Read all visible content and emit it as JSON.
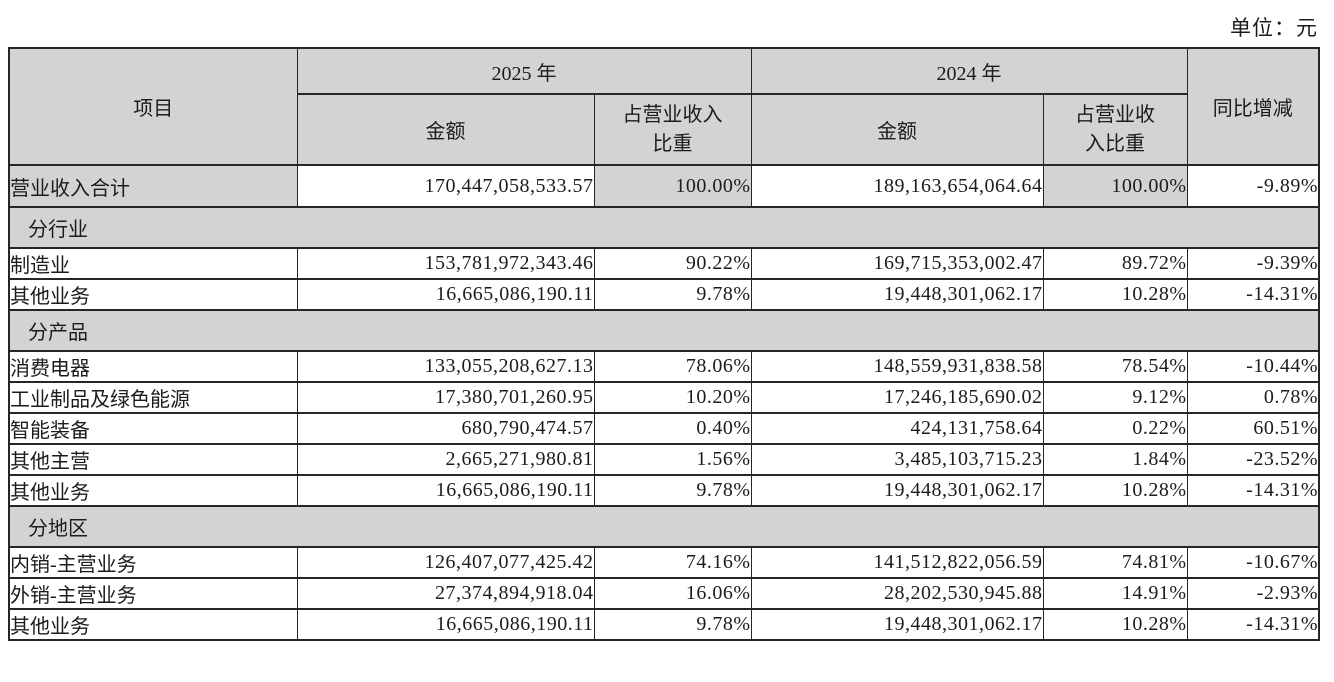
{
  "unit_label": "单位：元",
  "table": {
    "header": {
      "item": "项目",
      "year_2025": "2025 年",
      "year_2024": "2024 年",
      "yoy": "同比增减",
      "amount": "金额",
      "ratio_2025": "占营业收入\n比重",
      "ratio_2024": "占营业收\n入比重"
    },
    "rows": [
      {
        "type": "data",
        "style": "total",
        "label": "营业收入合计",
        "a2025": "170,447,058,533.57",
        "p2025": "100.00%",
        "a2024": "189,163,654,064.64",
        "p2024": "100.00%",
        "yoy": "-9.89%",
        "shaded": [
          "label",
          "p2025",
          "p2024"
        ]
      },
      {
        "type": "section",
        "label": "分行业"
      },
      {
        "type": "data",
        "label": "制造业",
        "a2025": "153,781,972,343.46",
        "p2025": "90.22%",
        "a2024": "169,715,353,002.47",
        "p2024": "89.72%",
        "yoy": "-9.39%"
      },
      {
        "type": "data",
        "label": "其他业务",
        "a2025": "16,665,086,190.11",
        "p2025": "9.78%",
        "a2024": "19,448,301,062.17",
        "p2024": "10.28%",
        "yoy": "-14.31%"
      },
      {
        "type": "section",
        "label": "分产品"
      },
      {
        "type": "data",
        "label": "消费电器",
        "a2025": "133,055,208,627.13",
        "p2025": "78.06%",
        "a2024": "148,559,931,838.58",
        "p2024": "78.54%",
        "yoy": "-10.44%"
      },
      {
        "type": "data",
        "label": "工业制品及绿色能源",
        "a2025": "17,380,701,260.95",
        "p2025": "10.20%",
        "a2024": "17,246,185,690.02",
        "p2024": "9.12%",
        "yoy": "0.78%"
      },
      {
        "type": "data",
        "label": "智能装备",
        "a2025": "680,790,474.57",
        "p2025": "0.40%",
        "a2024": "424,131,758.64",
        "p2024": "0.22%",
        "yoy": "60.51%"
      },
      {
        "type": "data",
        "label": "其他主营",
        "a2025": "2,665,271,980.81",
        "p2025": "1.56%",
        "a2024": "3,485,103,715.23",
        "p2024": "1.84%",
        "yoy": "-23.52%"
      },
      {
        "type": "data",
        "label": "其他业务",
        "a2025": "16,665,086,190.11",
        "p2025": "9.78%",
        "a2024": "19,448,301,062.17",
        "p2024": "10.28%",
        "yoy": "-14.31%"
      },
      {
        "type": "section",
        "label": "分地区"
      },
      {
        "type": "data",
        "label": "内销-主营业务",
        "a2025": "126,407,077,425.42",
        "p2025": "74.16%",
        "a2024": "141,512,822,056.59",
        "p2024": "74.81%",
        "yoy": "-10.67%"
      },
      {
        "type": "data",
        "label": "外销-主营业务",
        "a2025": "27,374,894,918.04",
        "p2025": "16.06%",
        "a2024": "28,202,530,945.88",
        "p2024": "14.91%",
        "yoy": "-2.93%"
      },
      {
        "type": "data",
        "label": "其他业务",
        "a2025": "16,665,086,190.11",
        "p2025": "9.78%",
        "a2024": "19,448,301,062.17",
        "p2024": "10.28%",
        "yoy": "-14.31%"
      }
    ]
  }
}
